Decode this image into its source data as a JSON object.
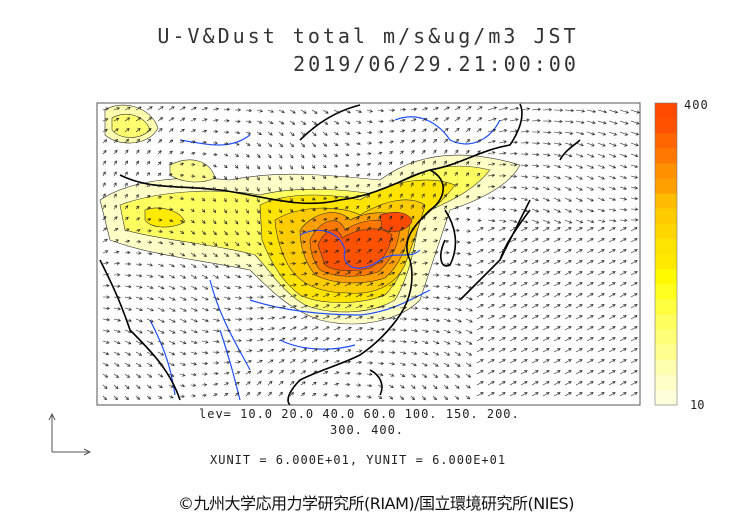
{
  "title": {
    "line1": "U-V&Dust total m/s&ug/m3 JST",
    "line2": "2019/06/29.21:00:00"
  },
  "legend": {
    "max_label": "400",
    "min_label": "10",
    "colors": [
      "#ff4a00",
      "#ff5200",
      "#ff6600",
      "#ff7800",
      "#ff9000",
      "#ffa000",
      "#ffbc00",
      "#ffcc00",
      "#ffd600",
      "#ffe400",
      "#ffea00",
      "#fffa00",
      "#ffff20",
      "#ffff40",
      "#ffff60",
      "#ffff78",
      "#ffff90",
      "#ffffb0",
      "#ffffc8",
      "#ffffdc"
    ]
  },
  "levels": {
    "line1": "lev= 10.0 20.0 40.0 60.0 100. 150. 200.",
    "line2": "300. 400."
  },
  "units": "XUNIT = 6.000E+01, YUNIT = 6.000E+01",
  "credit": "©九州大学応用力学研究所(RIAM)/国立環境研究所(NIES)",
  "colors": {
    "coast": "#000000",
    "river": "#1e50ff",
    "frame": "#555555"
  }
}
